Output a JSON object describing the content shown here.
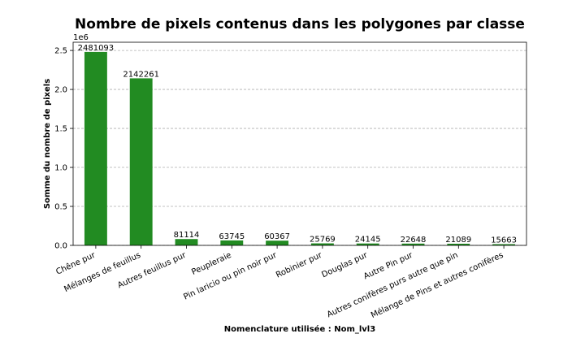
{
  "chart_data": {
    "type": "bar",
    "title": "Nombre de pixels contenus dans les polygones par classe",
    "xlabel": "Nomenclature utilisée : Nom_lvl3",
    "ylabel": "Somme du nombre de pixels",
    "scale_label": "1e6",
    "categories": [
      "Chêne pur",
      "Mélanges de feuillus",
      "Autres feuillus pur",
      "Peupleraie",
      "Pin laricio ou pin noir pur",
      "Robinier pur",
      "Douglas pur",
      "Autre Pin pur",
      "Autres conifères purs autre que pin",
      "Mélange de Pins et autres conifères"
    ],
    "values": [
      2481093,
      2142261,
      81114,
      63745,
      60367,
      25769,
      24145,
      22648,
      21089,
      15663
    ],
    "data_labels": [
      "2481093",
      "2142261",
      "81114",
      "63745",
      "60367",
      "25769",
      "24145",
      "22648",
      "21089",
      "15663"
    ],
    "yticks": [
      0,
      500000,
      1000000,
      1500000,
      2000000,
      2500000
    ],
    "ytick_labels": [
      "0.0",
      "0.5",
      "1.0",
      "1.5",
      "2.0",
      "2.5"
    ],
    "ylim": [
      0,
      2605148
    ],
    "bar_color": "#228b22",
    "grid": "horizontal dashed",
    "legend": "none"
  }
}
